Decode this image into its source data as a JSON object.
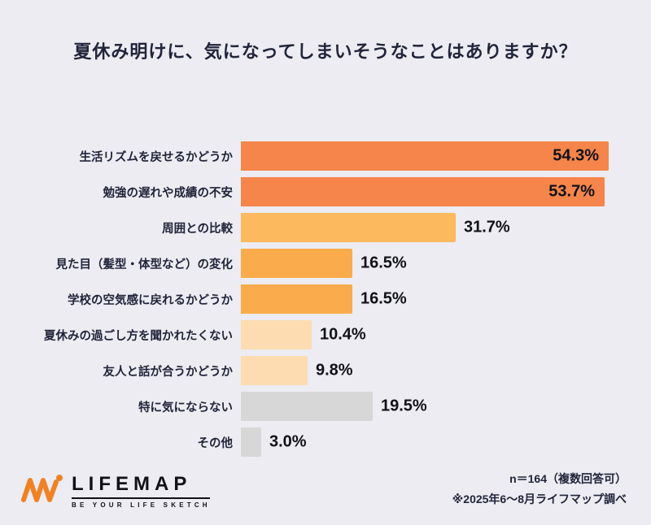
{
  "title": "夏休み明けに、気になってしまいそうなことはありますか？",
  "chart_data": {
    "type": "bar",
    "orientation": "horizontal",
    "title": "夏休み明けに、気になってしまいそうなことはありますか？",
    "categories": [
      "生活リズムを戻せるかどうか",
      "勉強の遅れや成績の不安",
      "周囲との比較",
      "見た目（髪型・体型など）の変化",
      "学校の空気感に戻れるかどうか",
      "夏休みの過ごし方を聞かれたくない",
      "友人と話が合うかどうか",
      "特に気にならない",
      "その他"
    ],
    "values": [
      54.3,
      53.7,
      31.7,
      16.5,
      16.5,
      10.4,
      9.8,
      19.5,
      3.0
    ],
    "value_labels": [
      "54.3%",
      "53.7%",
      "31.7%",
      "16.5%",
      "16.5%",
      "10.4%",
      "9.8%",
      "19.5%",
      "3.0%"
    ],
    "bar_colors": [
      "#F5854A",
      "#F5854A",
      "#FCB95E",
      "#FAAC4C",
      "#FAAC4C",
      "#FCDCB0",
      "#FCDCB0",
      "#D7D7D7",
      "#D7D7D7"
    ],
    "label_inside": [
      true,
      true,
      false,
      false,
      false,
      false,
      false,
      false,
      false
    ],
    "xlim": [
      0,
      56.5
    ],
    "grid": false,
    "legend": "none"
  },
  "footer": {
    "note1": "n＝164（複数回答可）",
    "note2": "※2025年6〜8月ライフマップ調べ"
  },
  "logo": {
    "name": "LIFEMAP",
    "tagline": "BE YOUR LIFE SKETCH",
    "accent": "#F08224"
  }
}
